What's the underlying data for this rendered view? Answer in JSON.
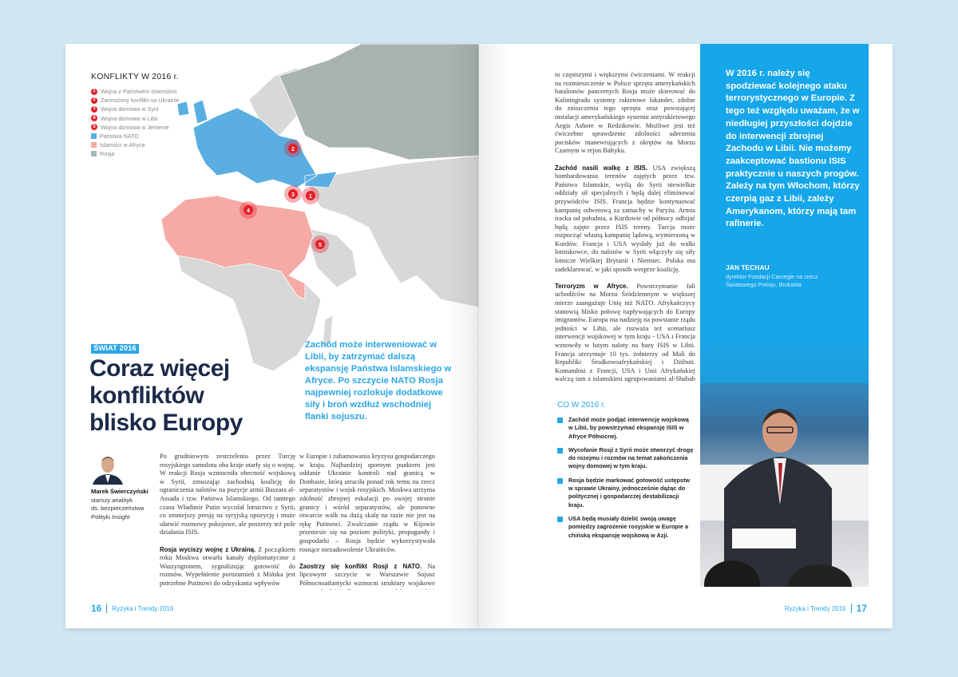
{
  "left_page": {
    "map": {
      "title": "KONFLIKTY W 2016 r.",
      "legend": [
        {
          "marker": "1",
          "label": "Wojna z Państwem Islamskim"
        },
        {
          "marker": "2",
          "label": "Zamrożony konflikt na Ukrainie"
        },
        {
          "marker": "3",
          "label": "Wojna domowa w Syrii"
        },
        {
          "marker": "4",
          "label": "Wojna domowa w Libii"
        },
        {
          "marker": "5",
          "label": "Wojna domowa w Jemenie"
        },
        {
          "swatch": "#5aaee2",
          "label": "Państwa NATO"
        },
        {
          "swatch": "#f5aaa6",
          "label": "Islamiści w Afryce"
        },
        {
          "swatch": "#a9b4ae",
          "label": "Rosja"
        }
      ],
      "markers": [
        "2",
        "3",
        "1",
        "4",
        "5"
      ]
    },
    "section_tag": "ŚWIAT 2016",
    "headline": [
      "Coraz więcej",
      "konfliktów",
      "blisko Europy"
    ],
    "lead": "Zachód może interweniować w Libii, by zatrzymać dalszą ekspansję Państwa Islamskiego w Afryce. Po szczycie NATO Rosja najpewniej rozlokuje dodatkowe siły i broń wzdłuż wschodniej flanki sojuszu.",
    "author": {
      "name": "Marek Świerczyński",
      "role": [
        "starszy analityk",
        "ds. bezpieczeństwa",
        "Polityki Insight"
      ]
    },
    "col1": [
      {
        "lead": "",
        "text": "Po grudniowym zestrzeleniu przez Turcję rosyjskiego samolotu oba kraje otarły się o wojnę. W reakcji Rosja wzmocniła obecność wojskową w Syrii, zmuszając zachodnią koalicję do ograniczenia nalotów na pozycje armii Baszara al-Assada i tzw. Państwa Islamskiego. Od tamtego czasu Władimir Putin wycofał lotnictwo z Syrii, co zmniejszy presję na syryjską opozycję i może ułatwić rozmowy pokojowe, ale poszerzy też pole działania ISIS."
      },
      {
        "lead": "Rosja wyciszy wojnę z Ukrainą.",
        "text": " Z początkiem roku Moskwa otwarła kanały dyplomatyczne z Waszyngtonem, sygnalizując gotowość do rozmów. Wypełnienie porozumień z Mińska jest potrzebne Putinowi do odzyskania wpływów"
      }
    ],
    "col2": [
      {
        "lead": "",
        "text": "w Europie i zahamowania kryzysu gospodarczego w kraju. Najbardziej spornym punktem jest oddanie Ukrainie kontroli nad granicą w Donbasie, którą utraciła ponad rok temu na rzecz separatystów i wojsk rosyjskich. Moskwa utrzyma zdolność zbrojnej eskalacji po swojej stronie granicy i wśród separatystów, ale ponowne otwarcie walk na dużą skalę na razie nie jest na rękę Putinowi. Zwalczanie rządu w Kijowie przeniesie się na poziom polityki, propagandy i gospodarki – Rosja będzie wykorzystywała rosnące niezadowolenie Ukraińców."
      },
      {
        "lead": "Zaostrzy się konflikt Rosji z NATO.",
        "text": " Na lipcowym szczycie w Warszawie Sojusz Północnoatlantycki wzmocni struktury wojskowe na wschodniej flance na wypadek rosyjskiej agresji. Moskwa odpowie na"
      }
    ],
    "folio": {
      "page": "16",
      "title": "Ryzyka i Trendy 2016"
    }
  },
  "right_page": {
    "col": [
      {
        "lead": "",
        "text": "to częstszymi i większymi ćwiczeniami. W reakcji na rozmieszczenie w Polsce sprzętu amerykańskich batalionów pancernych Rosja może skierować do Kaliningradu systemy rakietowe Iskander, zdolne do zniszczenia tego sprzętu oraz powstającej instalacji amerykańskiego systemu antyrakietowego Aegis Ashore w Redzikowie. Możliwe jest też ćwiczebne sprawdzenie zdolności uderzenia pocisków manewrujących z okrętów na Morzu Czarnym w rejon Bałtyku."
      },
      {
        "lead": "Zachód nasili walkę z ISIS.",
        "text": " USA zwiększą bombardowania terenów zajętych przez tzw. Państwo Islamskie, wyślą do Syrii niewielkie oddziały sił specjalnych i będą dalej eliminować przywódców ISIS. Francja będzie kontynuować kampanię odwetową za zamachy w Paryżu. Armia iracka od południa, a Kurdowie od północy odbijać będą zajęte przez ISIS tereny. Turcja może rozpocząć własną kampanię lądową, wymierzoną w Kurdów. Francja i USA wysłały już do walki lotniskowce, do nalotów w Syrii włączyły się siły lotnicze Wielkiej Brytanii i Niemiec. Polska ma zadeklarować, w jaki sposób wesprze koalicję."
      },
      {
        "lead": "Terroryzm w Afryce.",
        "text": " Powstrzymanie fali uchodźców na Morzu Śródziemnym w większej mierze zaangażuje Unię niż NATO. Afrykańczycy stanowią blisko połowę napływających do Europy imigrantów. Europa ma nadzieję na powstanie rządu jedności w Libii, ale rozważa też scenariusz interwencji wojskowej w tym kraju - USA i Francja wznowiły w lutym naloty na bazy ISIS w Libii. Francja utrzymuje 10 tys. żołnierzy od Mali do Republiki Środkowoafrykańskiej i Dżibuti. Komandosi z Francji, USA i Unii Afrykańskiej walczą tam z islamskimi ugrupowaniami al-Shabab (na wschodzie) i Boko Haram (na zachodzie regionu)."
      }
    ],
    "box": {
      "title": "CO W 2016 r.",
      "items": [
        "Zachód może podjąć interwencję wojskową w Libii, by powstrzymać ekspansję ISIS w Afryce Północnej.",
        "Wycofanie Rosji z Syrii może otworzyć drogę do rozejmu i rozmów na temat zakończenia wojny domowej w tym kraju.",
        "Rosja będzie markować gotowość ustępstw w sprawie Ukrainy, jednocześnie dążąc do politycznej i gospodarczej destabilizacji kraju.",
        "USA będą musiały dzielić swoją uwagę pomiędzy zagrożenie rosyjskie w Europie a chińską ekspansję wojskową w Azji."
      ]
    },
    "quote": {
      "text": "W 2016 r. należy się spodziewać kolejnego ataku terrorystycznego w Europie. Z tego też względu uważam, że w niedługiej przyszłości dojdzie do interwencji zbrojnej Zachodu w Libii. Nie możemy zaakceptować bastionu ISIS praktycznie u naszych progów. Zależy na tym Włochom, którzy czerpią gaz z Libii, zależy Amerykanom, którzy mają tam rafinerie.",
      "author": "JAN TECHAU",
      "role": "dyrektor Fundacji Carnegie na rzecz Światowego Pokoju, Bruksela"
    },
    "folio": {
      "page": "17",
      "title": "Ryzyka i Trendy 2016"
    }
  },
  "colors": {
    "accent": "#16a6ea",
    "headline": "#1c2a4a",
    "marker": "#e4202a",
    "nato": "#5aaee2",
    "islamists": "#f5aaa6",
    "russia": "#a9b4ae",
    "land": "#d8d8d8"
  }
}
